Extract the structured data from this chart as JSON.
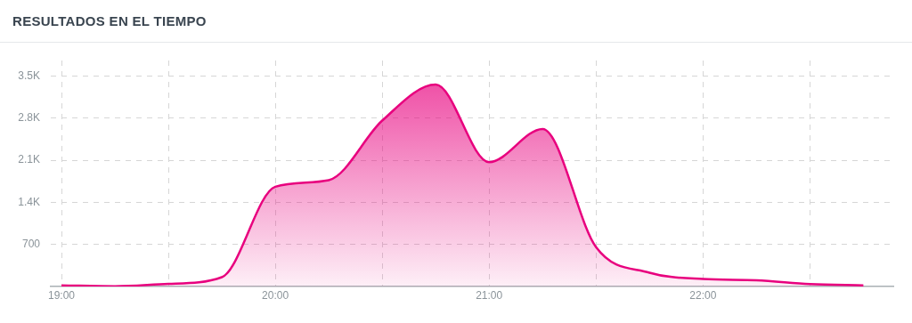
{
  "chart_data": {
    "type": "area",
    "title": "RESULTADOS EN EL TIEMPO",
    "x": [
      19,
      19.25,
      19.5,
      19.75,
      20,
      20.25,
      20.5,
      20.75,
      21,
      21.25,
      21.5,
      21.75,
      22,
      22.25,
      22.5,
      22.75
    ],
    "series": [
      {
        "color": "#e8007e",
        "values": [
          20,
          5,
          45,
          155,
          1660,
          1770,
          2760,
          3360,
          2070,
          2620,
          655,
          230,
          125,
          105,
          40,
          20
        ]
      }
    ],
    "xlim": [
      18.95,
      22.89
    ],
    "xticks": [
      {
        "value": 19,
        "label": "19:00"
      },
      {
        "value": 19.5,
        "label": null
      },
      {
        "value": 20,
        "label": "20:00"
      },
      {
        "value": 20.5,
        "label": null
      },
      {
        "value": 21,
        "label": "21:00"
      },
      {
        "value": 21.5,
        "label": null
      },
      {
        "value": 22,
        "label": "22:00"
      },
      {
        "value": 22.5,
        "label": null
      }
    ],
    "ylim": [
      0,
      3760
    ],
    "yticks": [
      700,
      {
        "value": 1400,
        "label": "1.4K"
      },
      {
        "value": 2100,
        "label": "2.1K"
      },
      {
        "value": 2800,
        "label": "2.8K"
      },
      {
        "value": 3500,
        "label": "3.5K"
      }
    ],
    "grid": true,
    "legend": false,
    "marker": "none",
    "line_style": "solid"
  }
}
